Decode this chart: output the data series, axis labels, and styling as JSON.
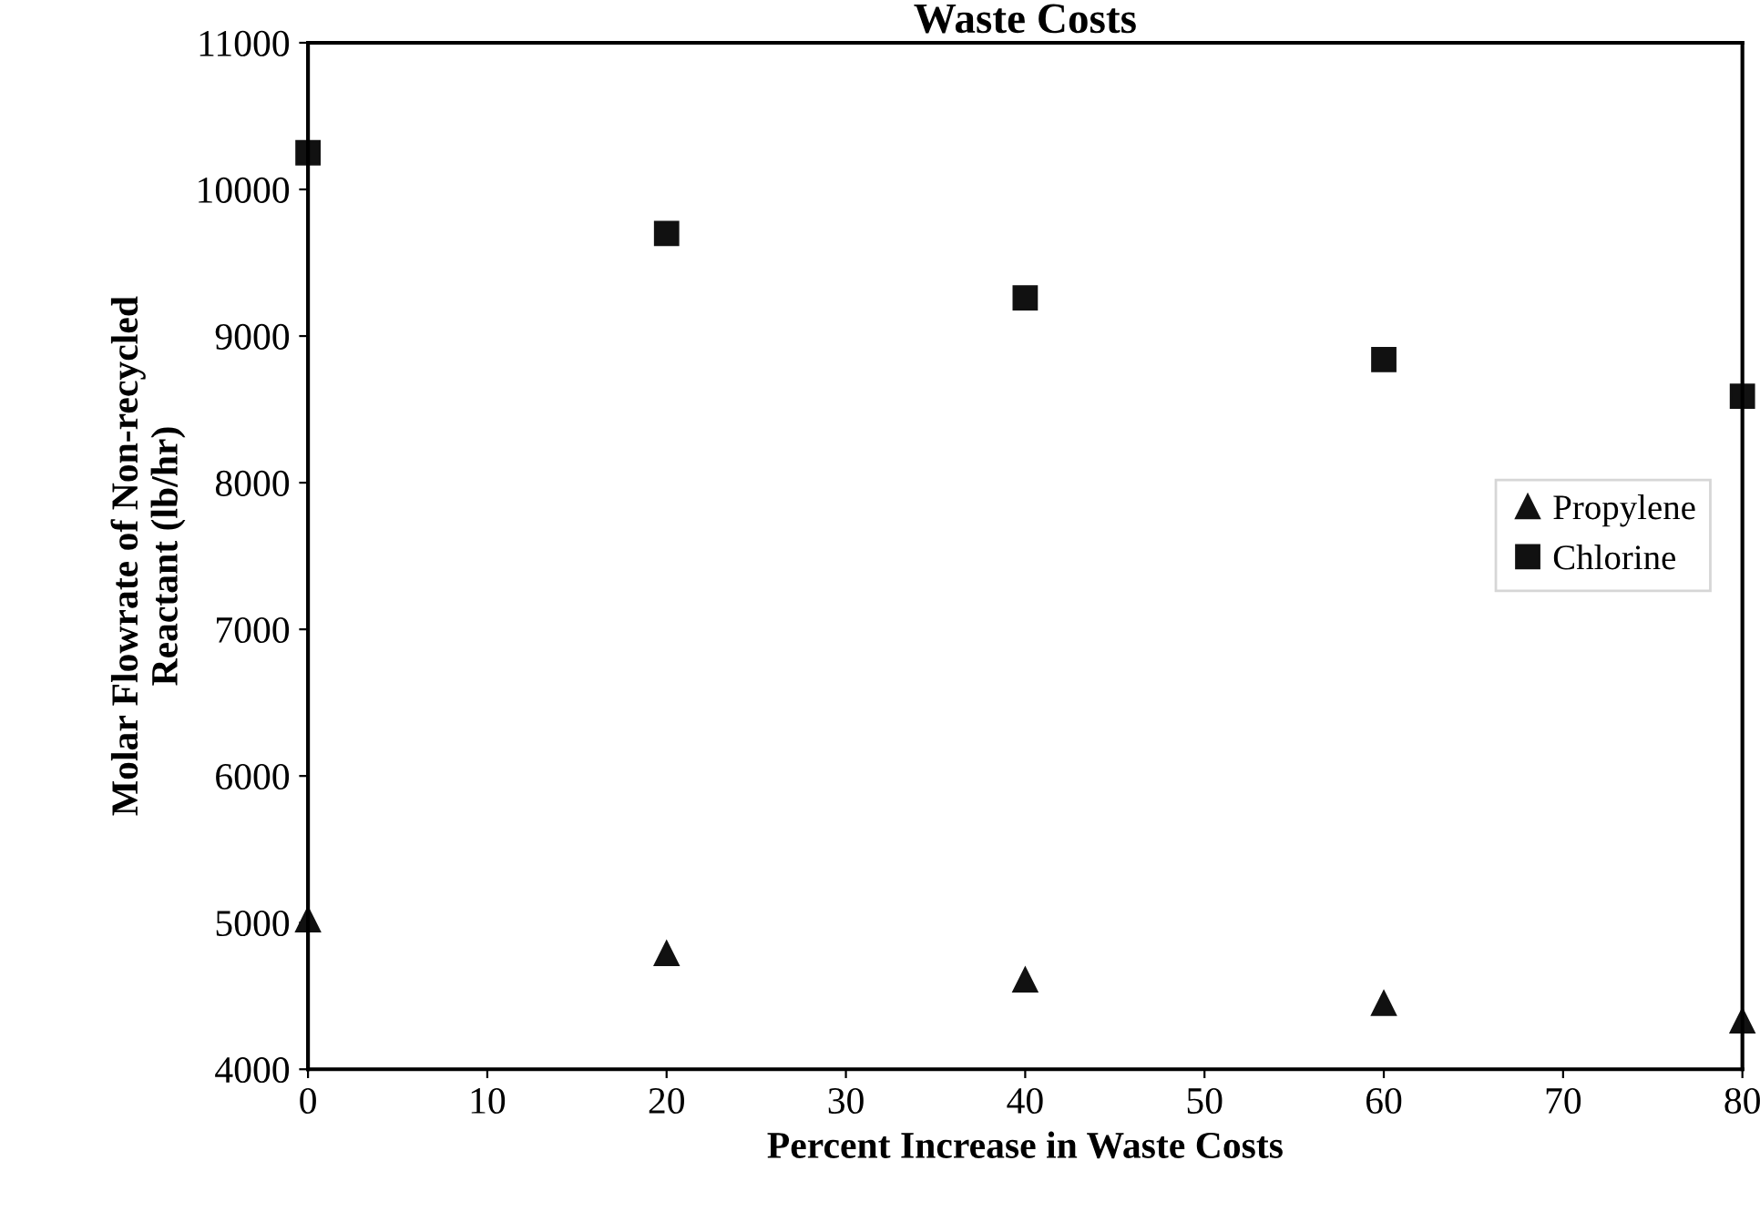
{
  "chart_data": {
    "type": "scatter",
    "title": "Waste Costs",
    "xlabel": "Percent Increase in Waste Costs",
    "ylabel": "Molar Flowrate of Non-recycled\nReactant (lb/hr)",
    "x": [
      0,
      20,
      40,
      60,
      80
    ],
    "series": [
      {
        "name": "Propylene",
        "color": "#111111",
        "marker": "triangle",
        "values": [
          5020,
          4790,
          4610,
          4450,
          4330
        ]
      },
      {
        "name": "Chlorine",
        "color": "#111111",
        "marker": "square",
        "values": [
          10250,
          9700,
          9260,
          8840,
          8590
        ]
      }
    ],
    "xlim": [
      0,
      80
    ],
    "xticks": [
      0,
      10,
      20,
      30,
      40,
      50,
      60,
      70,
      80
    ],
    "ylim": [
      4000,
      11000
    ],
    "yticks": [
      4000,
      5000,
      6000,
      7000,
      8000,
      9000,
      10000,
      11000
    ],
    "grid": false,
    "legend": "right"
  }
}
